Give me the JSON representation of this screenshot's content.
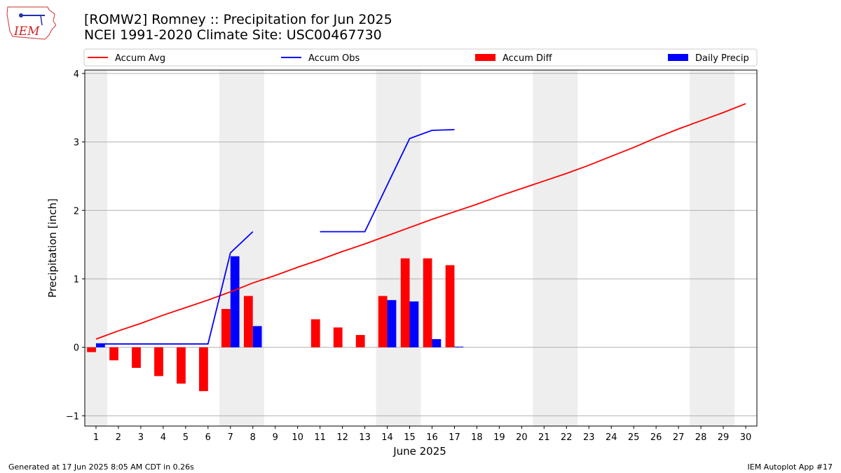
{
  "header": {
    "title_line1": "[ROMW2] Romney :: Precipitation for Jun 2025",
    "title_line2": "NCEI 1991-2020 Climate Site: USC00467730",
    "logo_text": "IEM"
  },
  "footer": {
    "left": "Generated at 17 Jun 2025 8:05 AM CDT in 0.26s",
    "right": "IEM Autoplot App #17"
  },
  "chart_data": {
    "type": "bar",
    "xlabel": "June 2025",
    "ylabel": "Precipitation [inch]",
    "ylim": [
      -1.15,
      4.05
    ],
    "xlim": [
      0.5,
      30.5
    ],
    "yticks": [
      -1,
      0,
      1,
      2,
      3,
      4
    ],
    "grid": "horizontal",
    "legend_position": "top",
    "legend": [
      "Accum Avg",
      "Accum Obs",
      "Accum Diff",
      "Daily Precip"
    ],
    "weekend_bands": [
      [
        0.5,
        1.5
      ],
      [
        6.5,
        8.5
      ],
      [
        13.5,
        15.5
      ],
      [
        20.5,
        22.5
      ],
      [
        27.5,
        29.5
      ]
    ],
    "days": [
      1,
      2,
      3,
      4,
      5,
      6,
      7,
      8,
      9,
      10,
      11,
      12,
      13,
      14,
      15,
      16,
      17,
      18,
      19,
      20,
      21,
      22,
      23,
      24,
      25,
      26,
      27,
      28,
      29,
      30
    ],
    "series": [
      {
        "name": "Accum Avg",
        "kind": "line",
        "color": "#ff0000",
        "values": [
          0.12,
          0.24,
          0.35,
          0.47,
          0.58,
          0.69,
          0.81,
          0.94,
          1.05,
          1.17,
          1.28,
          1.4,
          1.51,
          1.63,
          1.75,
          1.87,
          1.98,
          2.09,
          2.21,
          2.32,
          2.43,
          2.54,
          2.66,
          2.79,
          2.92,
          3.06,
          3.19,
          3.31,
          3.43,
          3.56
        ]
      },
      {
        "name": "Accum Obs",
        "kind": "line",
        "color": "#0000ff",
        "values": [
          0.05,
          0.05,
          0.05,
          0.05,
          0.05,
          0.05,
          1.38,
          1.69,
          null,
          null,
          1.69,
          1.69,
          1.69,
          2.37,
          3.05,
          3.17,
          3.18,
          null,
          null,
          null,
          null,
          null,
          null,
          null,
          null,
          null,
          null,
          null,
          null,
          null
        ]
      },
      {
        "name": "Accum Diff",
        "kind": "bar",
        "color": "#ff0000",
        "values": [
          -0.07,
          -0.19,
          -0.3,
          -0.42,
          -0.53,
          -0.64,
          0.56,
          0.75,
          null,
          null,
          0.41,
          0.29,
          0.18,
          0.75,
          1.3,
          1.3,
          1.2,
          null,
          null,
          null,
          null,
          null,
          null,
          null,
          null,
          null,
          null,
          null,
          null,
          null
        ]
      },
      {
        "name": "Daily Precip",
        "kind": "bar",
        "color": "#0000ff",
        "values": [
          0.05,
          0,
          0,
          0,
          0,
          0,
          1.33,
          0.31,
          null,
          null,
          0,
          0,
          0,
          0.69,
          0.67,
          0.12,
          0.01,
          null,
          null,
          null,
          null,
          null,
          null,
          null,
          null,
          null,
          null,
          null,
          null,
          null
        ]
      }
    ]
  }
}
